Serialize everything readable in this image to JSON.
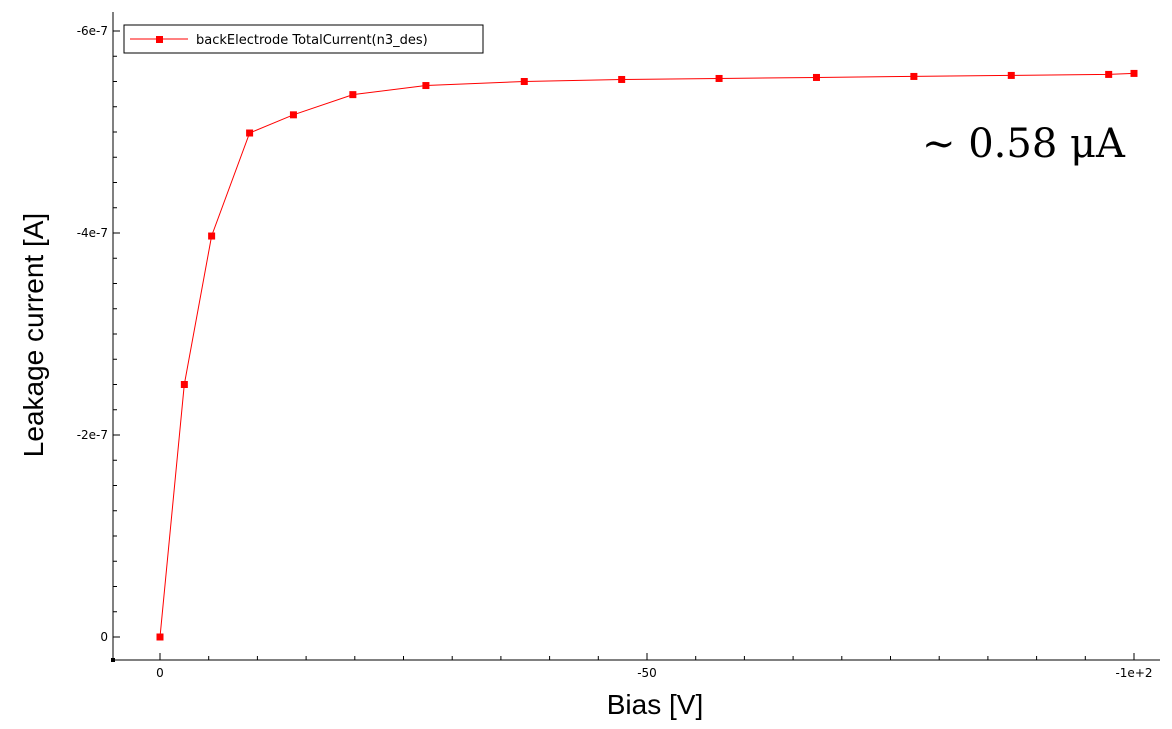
{
  "chart_data": {
    "type": "line",
    "xlabel": "Bias [V]",
    "ylabel": "Leakage current [A]",
    "xlim": [
      0,
      -100
    ],
    "ylim": [
      0,
      -6e-07
    ],
    "x_ticks": [
      {
        "value": 0,
        "label": "0"
      },
      {
        "value": -50,
        "label": "-50"
      },
      {
        "value": -100,
        "label": "-1e+2"
      }
    ],
    "y_ticks": [
      {
        "value": 0,
        "label": "0"
      },
      {
        "value": -2e-07,
        "label": "-2e-7"
      },
      {
        "value": -4e-07,
        "label": "-4e-7"
      },
      {
        "value": -6e-07,
        "label": "-6e-7"
      }
    ],
    "grid": false,
    "legend_position": "top-left",
    "annotation": "∼ 0.58 μA",
    "series": [
      {
        "name": "backElectrode TotalCurrent(n3_des)",
        "color": "#ff0000",
        "marker": "square",
        "x": [
          0,
          -2.5,
          -5.3,
          -9.2,
          -13.7,
          -19.8,
          -27.3,
          -37.4,
          -47.4,
          -57.4,
          -67.4,
          -77.4,
          -87.4,
          -97.4,
          -100
        ],
        "y": [
          0,
          -2.5e-07,
          -3.97e-07,
          -4.99e-07,
          -5.17e-07,
          -5.37e-07,
          -5.46e-07,
          -5.5e-07,
          -5.52e-07,
          -5.53e-07,
          -5.54e-07,
          -5.55e-07,
          -5.56e-07,
          -5.57e-07,
          -5.58e-07
        ]
      }
    ]
  }
}
